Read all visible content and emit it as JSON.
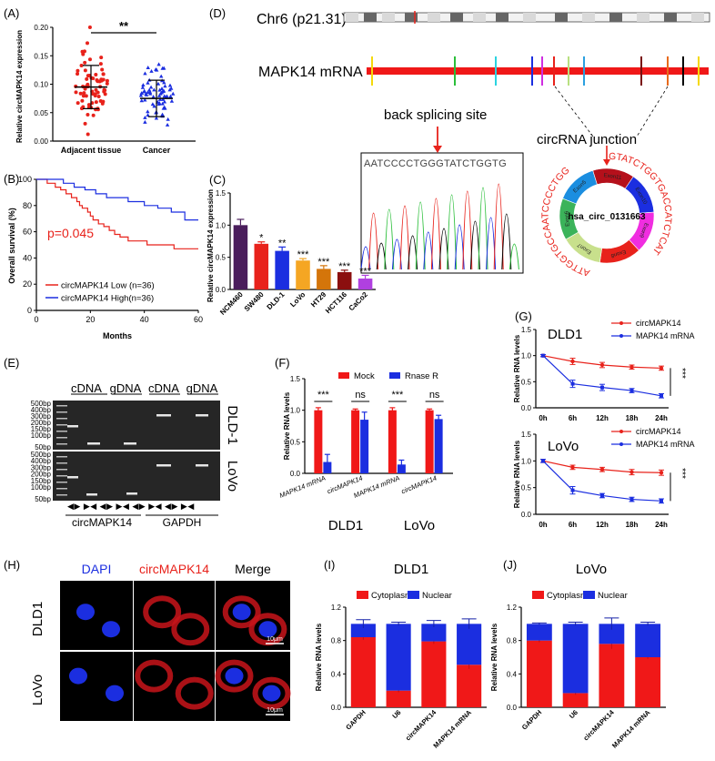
{
  "panels": {
    "A": "(A)",
    "B": "(B)",
    "C": "(C)",
    "D": "(D)",
    "E": "(E)",
    "F": "(F)",
    "G": "(G)",
    "H": "(H)",
    "I": "(I)",
    "J": "(J)"
  },
  "chart_data": [
    {
      "id": "A",
      "type": "scatter",
      "ylabel": "Relative circMAPK14 expression",
      "categories": [
        "Adjacent tissue",
        "Cancer"
      ],
      "ylim": [
        0,
        0.2
      ],
      "yticks": [
        "0.00",
        "0.05",
        "0.10",
        "0.15",
        "0.20"
      ],
      "significance": "**",
      "series": [
        {
          "name": "Adjacent tissue",
          "color": "#e8221b",
          "marker": "circle",
          "mean": 0.095,
          "sd": 0.038
        },
        {
          "name": "Cancer",
          "color": "#1b2ee0",
          "marker": "triangle",
          "mean": 0.075,
          "sd": 0.032
        }
      ]
    },
    {
      "id": "B",
      "type": "line",
      "ylabel": "Overall survival (%)",
      "xlabel": "Months",
      "xlim": [
        0,
        60
      ],
      "ylim": [
        0,
        100
      ],
      "xticks": [
        "0",
        "20",
        "40",
        "60"
      ],
      "yticks": [
        "0",
        "20",
        "40",
        "60",
        "80",
        "100"
      ],
      "annotation": "p=0.045",
      "series": [
        {
          "name": "circMAPK14 Low (n=36)",
          "color": "#e8221b",
          "x": [
            0,
            4,
            7,
            9,
            11,
            13,
            15,
            16,
            17,
            19,
            20,
            21,
            23,
            25,
            27,
            29,
            31,
            34,
            37,
            41,
            46,
            51,
            55,
            60
          ],
          "y": [
            100,
            97,
            94,
            92,
            89,
            86,
            83,
            80,
            78,
            75,
            72,
            69,
            66,
            64,
            61,
            58,
            56,
            53,
            53,
            50,
            50,
            47,
            47,
            47
          ]
        },
        {
          "name": "circMAPK14 High(n=36)",
          "color": "#1b2ee0",
          "x": [
            0,
            10,
            14,
            18,
            22,
            26,
            30,
            34,
            40,
            45,
            50,
            55,
            60
          ],
          "y": [
            100,
            97,
            94,
            92,
            89,
            86,
            86,
            83,
            80,
            78,
            75,
            69,
            69
          ]
        }
      ]
    },
    {
      "id": "C",
      "type": "bar",
      "ylabel": "Relative circMAPK14 expression",
      "categories": [
        "NCM460",
        "SW480",
        "DLD-1",
        "LoVo",
        "HT29",
        "HCT116",
        "CaCo2"
      ],
      "values": [
        1.0,
        0.71,
        0.6,
        0.45,
        0.32,
        0.27,
        0.17
      ],
      "errors": [
        0.09,
        0.03,
        0.06,
        0.03,
        0.05,
        0.03,
        0.05
      ],
      "significance": [
        "",
        "*",
        "**",
        "***",
        "***",
        "***",
        "***"
      ],
      "colors": [
        "#4a1e5c",
        "#e8221b",
        "#1b2ee0",
        "#f5a623",
        "#d4750a",
        "#8b0f0f",
        "#b040e0"
      ],
      "ylim": [
        0,
        1.5
      ],
      "yticks": [
        "0.0",
        "0.5",
        "1.0",
        "1.5"
      ]
    },
    {
      "id": "F",
      "type": "bar",
      "ylabel": "Relative RNA levels",
      "categories": [
        "MAPK14 mRNA",
        "circMAPK14",
        "MAPK14 mRNA",
        "circMAPK14"
      ],
      "groups": [
        "DLD1",
        "LoVo"
      ],
      "ylim": [
        0,
        1.5
      ],
      "yticks": [
        "0.0",
        "0.5",
        "1.0",
        "1.5"
      ],
      "significance": [
        "***",
        "ns",
        "***",
        "ns"
      ],
      "series": [
        {
          "name": "Mock",
          "color": "#f01818",
          "values": [
            1.0,
            1.0,
            1.0,
            1.0
          ],
          "errors": [
            0.04,
            0.02,
            0.04,
            0.02
          ]
        },
        {
          "name": "Rnase R",
          "color": "#1b2ee0",
          "values": [
            0.18,
            0.85,
            0.14,
            0.86
          ],
          "errors": [
            0.12,
            0.12,
            0.07,
            0.06
          ]
        }
      ]
    },
    {
      "id": "G1",
      "type": "line",
      "title": "DLD1",
      "ylabel": "Relative RNA levels",
      "x": [
        "0h",
        "6h",
        "12h",
        "18h",
        "24h"
      ],
      "ylim": [
        0,
        1.5
      ],
      "yticks": [
        "0.0",
        "0.5",
        "1.0",
        "1.5"
      ],
      "significance": "***",
      "series": [
        {
          "name": "circMAPK14",
          "color": "#e8221b",
          "values": [
            1.0,
            0.89,
            0.82,
            0.78,
            0.76
          ],
          "errors": [
            0.02,
            0.06,
            0.05,
            0.04,
            0.04
          ]
        },
        {
          "name": "MAPK14 mRNA",
          "color": "#1b2ee0",
          "values": [
            1.0,
            0.46,
            0.39,
            0.33,
            0.23
          ],
          "errors": [
            0.02,
            0.07,
            0.06,
            0.04,
            0.04
          ]
        }
      ]
    },
    {
      "id": "G2",
      "type": "line",
      "title": "LoVo",
      "ylabel": "Relative RNA levels",
      "x": [
        "0h",
        "6h",
        "12h",
        "18h",
        "24h"
      ],
      "ylim": [
        0,
        1.5
      ],
      "yticks": [
        "0.0",
        "0.5",
        "1.0",
        "1.5"
      ],
      "significance": "***",
      "series": [
        {
          "name": "circMAPK14",
          "color": "#e8221b",
          "values": [
            1.0,
            0.88,
            0.84,
            0.79,
            0.78
          ],
          "errors": [
            0.03,
            0.04,
            0.04,
            0.05,
            0.05
          ]
        },
        {
          "name": "MAPK14 mRNA",
          "color": "#1b2ee0",
          "values": [
            1.0,
            0.45,
            0.35,
            0.28,
            0.25
          ],
          "errors": [
            0.03,
            0.07,
            0.04,
            0.04,
            0.04
          ]
        }
      ]
    },
    {
      "id": "I",
      "type": "bar",
      "title": "DLD1",
      "ylabel": "Relative RNA levels",
      "stacked": true,
      "categories": [
        "GAPDH",
        "U6",
        "circMAPK14",
        "MAPK14 mRNA"
      ],
      "ylim": [
        0,
        1.2
      ],
      "yticks": [
        "0.0",
        "0.4",
        "0.8",
        "1.2"
      ],
      "series": [
        {
          "name": "Cytoplasm",
          "color": "#f01818",
          "values": [
            0.84,
            0.2,
            0.79,
            0.51
          ],
          "errors": [
            0.03,
            0.02,
            0.03,
            0.05
          ]
        },
        {
          "name": "Nuclear",
          "color": "#1b2ee0",
          "values": [
            0.16,
            0.8,
            0.21,
            0.49
          ],
          "errors": [
            0.05,
            0.02,
            0.04,
            0.06
          ]
        }
      ]
    },
    {
      "id": "J",
      "type": "bar",
      "title": "LoVo",
      "ylabel": "Relative RNA levels",
      "stacked": true,
      "categories": [
        "GAPDH",
        "U6",
        "circMAPK14",
        "MAPK14 mRNA"
      ],
      "ylim": [
        0,
        1.2
      ],
      "yticks": [
        "0.0",
        "0.4",
        "0.8",
        "1.2"
      ],
      "series": [
        {
          "name": "Cytoplasm",
          "color": "#f01818",
          "values": [
            0.8,
            0.17,
            0.76,
            0.6
          ],
          "errors": [
            0.02,
            0.02,
            0.06,
            0.02
          ]
        },
        {
          "name": "Nuclear",
          "color": "#1b2ee0",
          "values": [
            0.2,
            0.83,
            0.24,
            0.4
          ],
          "errors": [
            0.01,
            0.02,
            0.07,
            0.02
          ]
        }
      ]
    }
  ],
  "panel_d": {
    "chromosome": "Chr6 (p21.31)",
    "mrna_label": "MAPK14 mRNA",
    "back_splicing_label": "back splicing site",
    "sequence_top": "AATCCCCTGGGTATCTGGTG",
    "junction_label": "circRNA junction",
    "circ_name": "hsa_circ_0131663",
    "outer_seq_left": "ATTGGTGCCAATCCCCTGG",
    "outer_seq_right": "GTATCTGGTGACCATCTCAT",
    "exons": [
      "Exon11",
      "Exon10",
      "Exon9",
      "Exon8",
      "Exon7",
      "Exon6",
      "Exon5"
    ],
    "exon_colors": [
      "#b5101b",
      "#1b2ee0",
      "#f02de0",
      "#e8221b",
      "#c8e08c",
      "#3bb35a",
      "#1b8ee0"
    ],
    "junction_marks": [
      "#f5d90a",
      "#2bbf3a",
      "#2bd3e0",
      "#1b2ee0",
      "#d02de0",
      "#e8221b",
      "#b8e080",
      "#2ba0e0",
      "#7a1010",
      "#e86a1b",
      "#000000"
    ]
  },
  "panel_e": {
    "lane_labels": [
      "cDNA",
      "gDNA",
      "cDNA",
      "gDNA"
    ],
    "ladder": [
      "500bp",
      "400bp",
      "300bp",
      "200bp",
      "150bp",
      "100bp",
      "50bp",
      "500bp",
      "400bp",
      "300bp",
      "200bp",
      "150bp",
      "100bp",
      "50bp"
    ],
    "row_labels": [
      "DLD-1",
      "LoVo"
    ],
    "primers": "◀▶  ▶◀  ◀▶  ▶◀  ◀▶  ▶◀  ◀▶  ▶◀",
    "gene_labels": [
      "circMAPK14",
      "GAPDH"
    ]
  },
  "panel_h": {
    "headers": [
      "DAPI",
      "circMAPK14",
      "Merge"
    ],
    "rows": [
      "DLD1",
      "LoVo"
    ],
    "scale": "10μm",
    "header_colors": [
      "#1b2ee0",
      "#e8221b",
      "#000000"
    ]
  },
  "panel_f_groups": [
    "DLD1",
    "LoVo"
  ]
}
